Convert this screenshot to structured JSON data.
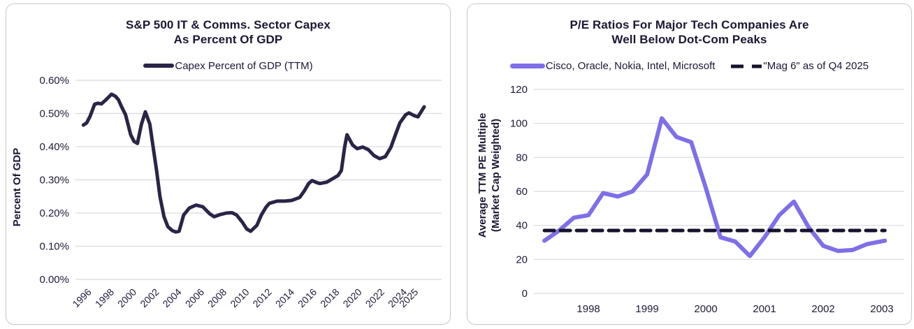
{
  "colors": {
    "accent_navy": "#2a2547",
    "accent_purple": "#7e6fe8",
    "dashed_black": "#16122e",
    "grid": "#d9d9d9",
    "tick": "#1e1a38",
    "title": "#1b1733",
    "card_border": "#c9c9c9",
    "background": "#ffffff"
  },
  "chart_data": [
    {
      "type": "line",
      "title_line1": "S&P 500 IT & Comms. Sector Capex",
      "title_line2": "As Percent Of GDP",
      "ylabel": "Percent Of GDP",
      "xlabel": "",
      "legend_position": "top",
      "grid": "horizontal",
      "xlim": [
        1994.9,
        2027.4
      ],
      "ylim": [
        0,
        0.6
      ],
      "ytick_values": [
        0,
        0.1,
        0.2,
        0.3,
        0.4,
        0.5,
        0.6
      ],
      "ytick_labels": [
        "0.00%",
        "0.10%",
        "0.20%",
        "0.30%",
        "0.40%",
        "0.50%",
        "0.60%"
      ],
      "xtick_values": [
        1996,
        1998,
        2000,
        2002,
        2004,
        2006,
        2008,
        2010,
        2012,
        2014,
        2016,
        2018,
        2020,
        2022,
        2024,
        2025
      ],
      "xtick_labels": [
        "1996",
        "1998",
        "2000",
        "2002",
        "2004",
        "2006",
        "2008",
        "2010",
        "2012",
        "2014",
        "2016",
        "2018",
        "2020",
        "2022",
        "2024",
        "2025"
      ],
      "xtick_rotation_deg": 45,
      "series": [
        {
          "name": "Capex Percent of GDP (TTM)",
          "color": "#2a2547",
          "width": 5,
          "dash": "",
          "points": [
            [
              1995.6,
              0.465
            ],
            [
              1995.9,
              0.472
            ],
            [
              1996.2,
              0.492
            ],
            [
              1996.6,
              0.528
            ],
            [
              1996.9,
              0.531
            ],
            [
              1997.2,
              0.529
            ],
            [
              1997.6,
              0.541
            ],
            [
              1998.1,
              0.558
            ],
            [
              1998.45,
              0.552
            ],
            [
              1998.7,
              0.542
            ],
            [
              1999.0,
              0.52
            ],
            [
              1999.35,
              0.496
            ],
            [
              1999.8,
              0.436
            ],
            [
              2000.1,
              0.416
            ],
            [
              2000.4,
              0.41
            ],
            [
              2000.75,
              0.467
            ],
            [
              2001.1,
              0.505
            ],
            [
              2001.5,
              0.468
            ],
            [
              2001.8,
              0.398
            ],
            [
              2002.1,
              0.328
            ],
            [
              2002.4,
              0.25
            ],
            [
              2002.75,
              0.19
            ],
            [
              2003.1,
              0.159
            ],
            [
              2003.5,
              0.147
            ],
            [
              2003.8,
              0.143
            ],
            [
              2004.1,
              0.145
            ],
            [
              2004.5,
              0.194
            ],
            [
              2005.0,
              0.215
            ],
            [
              2005.6,
              0.224
            ],
            [
              2006.2,
              0.219
            ],
            [
              2006.8,
              0.198
            ],
            [
              2007.2,
              0.189
            ],
            [
              2007.8,
              0.196
            ],
            [
              2008.3,
              0.2
            ],
            [
              2008.8,
              0.201
            ],
            [
              2009.2,
              0.194
            ],
            [
              2009.7,
              0.173
            ],
            [
              2010.1,
              0.152
            ],
            [
              2010.45,
              0.145
            ],
            [
              2011.0,
              0.163
            ],
            [
              2011.4,
              0.194
            ],
            [
              2011.8,
              0.217
            ],
            [
              2012.1,
              0.229
            ],
            [
              2012.8,
              0.236
            ],
            [
              2013.5,
              0.236
            ],
            [
              2014.1,
              0.238
            ],
            [
              2014.8,
              0.247
            ],
            [
              2015.2,
              0.266
            ],
            [
              2015.6,
              0.289
            ],
            [
              2015.9,
              0.298
            ],
            [
              2016.3,
              0.292
            ],
            [
              2016.6,
              0.289
            ],
            [
              2017.2,
              0.293
            ],
            [
              2017.7,
              0.303
            ],
            [
              2018.2,
              0.313
            ],
            [
              2018.5,
              0.328
            ],
            [
              2018.8,
              0.4
            ],
            [
              2019.0,
              0.436
            ],
            [
              2019.5,
              0.405
            ],
            [
              2019.9,
              0.394
            ],
            [
              2020.4,
              0.399
            ],
            [
              2020.9,
              0.391
            ],
            [
              2021.4,
              0.373
            ],
            [
              2021.9,
              0.364
            ],
            [
              2022.4,
              0.37
            ],
            [
              2022.9,
              0.398
            ],
            [
              2023.3,
              0.436
            ],
            [
              2023.7,
              0.472
            ],
            [
              2024.2,
              0.496
            ],
            [
              2024.5,
              0.502
            ],
            [
              2025.0,
              0.493
            ],
            [
              2025.3,
              0.49
            ],
            [
              2025.85,
              0.52
            ]
          ]
        }
      ]
    },
    {
      "type": "line",
      "title_line1": "P/E Ratios For Major Tech Companies Are",
      "title_line2": "Well Below Dot-Com Peaks",
      "ylabel_line1": "Average TTM PE Multiple",
      "ylabel_line2": "(Market Cap Weighted)",
      "xlabel": "",
      "legend_position": "top",
      "grid": "horizontal",
      "xlim": [
        1997.07,
        2003.38
      ],
      "ylim": [
        0,
        120
      ],
      "ytick_values": [
        0,
        20,
        40,
        60,
        80,
        100,
        120
      ],
      "ytick_labels": [
        "0",
        "20",
        "40",
        "60",
        "80",
        "100",
        "120"
      ],
      "xtick_values": [
        1998,
        1999,
        2000,
        2001,
        2002,
        2003
      ],
      "xtick_labels": [
        "1998",
        "1999",
        "2000",
        "2001",
        "2002",
        "2003"
      ],
      "xtick_rotation_deg": 0,
      "series": [
        {
          "name": "Cisco, Oracle, Nokia, Intel, Microsoft",
          "color": "#7e6fe8",
          "width": 6,
          "dash": "",
          "points": [
            [
              1997.25,
              31
            ],
            [
              1997.5,
              37
            ],
            [
              1997.75,
              44.5
            ],
            [
              1998.0,
              46
            ],
            [
              1998.25,
              59
            ],
            [
              1998.5,
              57
            ],
            [
              1998.75,
              60
            ],
            [
              1999.0,
              70
            ],
            [
              1999.25,
              103
            ],
            [
              1999.5,
              92
            ],
            [
              1999.75,
              89
            ],
            [
              2000.0,
              62
            ],
            [
              2000.25,
              33
            ],
            [
              2000.5,
              30.5
            ],
            [
              2000.75,
              22
            ],
            [
              2001.0,
              33
            ],
            [
              2001.25,
              46
            ],
            [
              2001.5,
              54
            ],
            [
              2001.75,
              39
            ],
            [
              2002.0,
              28
            ],
            [
              2002.25,
              25
            ],
            [
              2002.5,
              25.5
            ],
            [
              2002.75,
              29
            ],
            [
              2003.05,
              31
            ]
          ]
        },
        {
          "name": "\"Mag 6\" as of Q4 2025",
          "color": "#16122e",
          "width": 5,
          "dash": "14 9",
          "points": [
            [
              1997.25,
              37
            ],
            [
              2003.05,
              37
            ]
          ]
        }
      ]
    }
  ]
}
